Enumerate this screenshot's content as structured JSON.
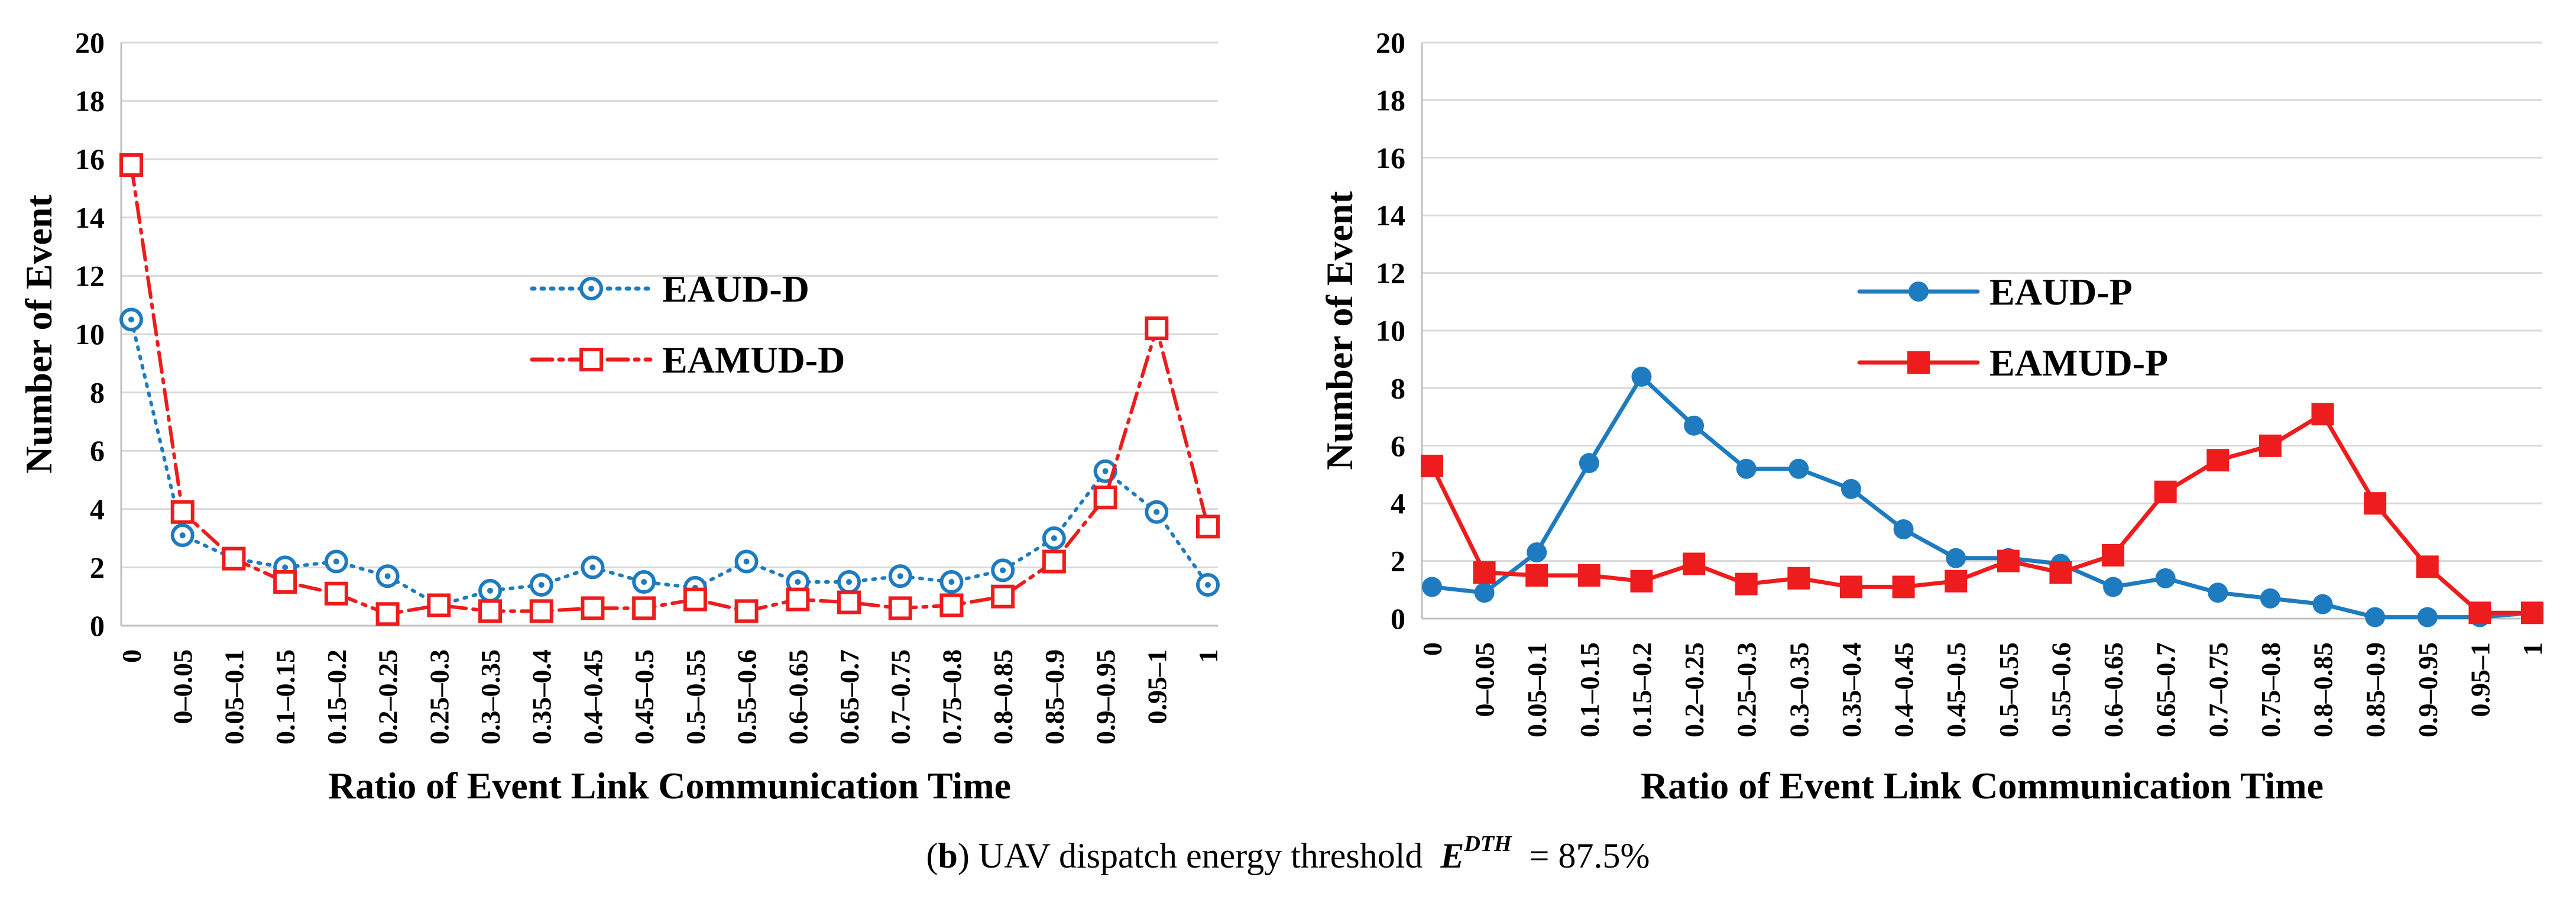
{
  "caption": {
    "label": "b",
    "text": "UAV dispatch energy threshold",
    "symbol": "E",
    "superscript": "DTH",
    "value": "= 87.5%"
  },
  "colors": {
    "blue": "#1f7bbf",
    "red": "#ee1c1c",
    "grid": "#d9d9d9",
    "axis": "#bfbfbf"
  },
  "chart_data": [
    {
      "type": "line",
      "title": "",
      "xlabel": "Ratio of Event Link Communication Time",
      "ylabel": "Number of Event",
      "ylim": [
        0,
        20
      ],
      "yticks": [
        0,
        2,
        4,
        6,
        8,
        10,
        12,
        14,
        16,
        18,
        20
      ],
      "grid": true,
      "legend_position": "center",
      "categories": [
        "0",
        "0–0.05",
        "0.05–0.1",
        "0.1–0.15",
        "0.15–0.2",
        "0.2–0.25",
        "0.25–0.3",
        "0.3–0.35",
        "0.35–0.4",
        "0.4–0.45",
        "0.45–0.5",
        "0.5–0.55",
        "0.55–0.6",
        "0.6–0.65",
        "0.65–0.7",
        "0.7–0.75",
        "0.75–0.8",
        "0.8–0.85",
        "0.85–0.9",
        "0.9–0.95",
        "0.95–1",
        "1"
      ],
      "series": [
        {
          "name": "EAUD-D",
          "color": "#1f7bbf",
          "line": "dotted",
          "marker": "circle-dot",
          "values": [
            10.5,
            3.1,
            2.3,
            2.0,
            2.2,
            1.7,
            0.7,
            1.2,
            1.4,
            2.0,
            1.5,
            1.3,
            2.2,
            1.5,
            1.5,
            1.7,
            1.5,
            1.9,
            3.0,
            5.3,
            3.9,
            1.4
          ]
        },
        {
          "name": "EAMUD-D",
          "color": "#ee1c1c",
          "line": "dashdot",
          "marker": "open-square",
          "values": [
            15.8,
            3.9,
            2.3,
            1.5,
            1.1,
            0.4,
            0.7,
            0.5,
            0.5,
            0.6,
            0.6,
            0.9,
            0.5,
            0.9,
            0.8,
            0.6,
            0.7,
            1.0,
            2.2,
            4.4,
            10.2,
            3.4
          ]
        }
      ]
    },
    {
      "type": "line",
      "title": "",
      "xlabel": "Ratio of Event Link Communication Time",
      "ylabel": "Number of Event",
      "ylim": [
        0,
        20
      ],
      "yticks": [
        0,
        2,
        4,
        6,
        8,
        10,
        12,
        14,
        16,
        18,
        20
      ],
      "grid": true,
      "legend_position": "center",
      "categories": [
        "0",
        "0–0.05",
        "0.05–0.1",
        "0.1–0.15",
        "0.15–0.2",
        "0.2–0.25",
        "0.25–0.3",
        "0.3–0.35",
        "0.35–0.4",
        "0.4–0.45",
        "0.45–0.5",
        "0.5–0.55",
        "0.55–0.6",
        "0.6–0.65",
        "0.65–0.7",
        "0.7–0.75",
        "0.75–0.8",
        "0.8–0.85",
        "0.85–0.9",
        "0.9–0.95",
        "0.95–1",
        "1"
      ],
      "series": [
        {
          "name": "EAUD-P",
          "color": "#1f7bbf",
          "line": "solid",
          "marker": "filled-circle",
          "values": [
            1.1,
            0.9,
            2.3,
            5.4,
            8.4,
            6.7,
            5.2,
            5.2,
            4.5,
            3.1,
            2.1,
            2.1,
            1.9,
            1.1,
            1.4,
            0.9,
            0.7,
            0.5,
            0.05,
            0.05,
            0.05,
            0.2
          ]
        },
        {
          "name": "EAMUD-P",
          "color": "#ee1c1c",
          "line": "solid",
          "marker": "filled-square",
          "values": [
            5.3,
            1.6,
            1.5,
            1.5,
            1.3,
            1.9,
            1.2,
            1.4,
            1.1,
            1.1,
            1.3,
            2.0,
            1.6,
            2.2,
            4.4,
            5.5,
            6.0,
            7.1,
            4.0,
            1.8,
            0.2,
            0.2
          ]
        }
      ]
    }
  ]
}
